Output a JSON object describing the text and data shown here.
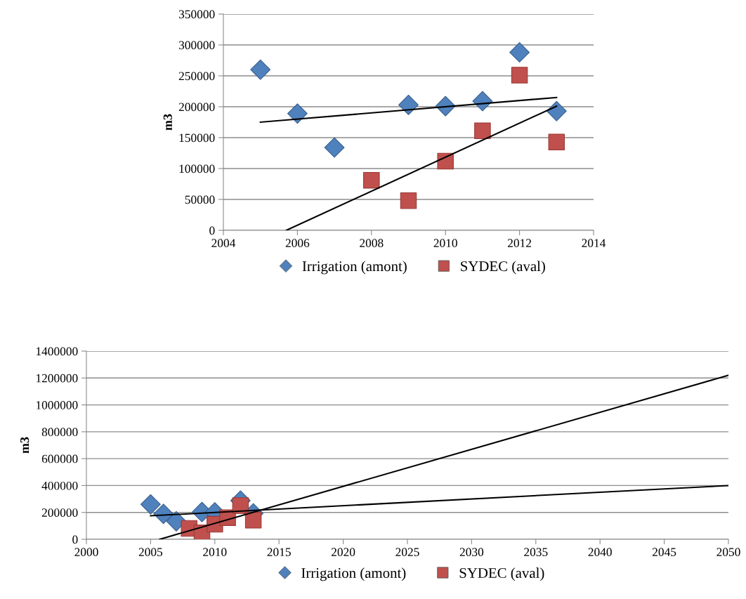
{
  "chart_data": [
    {
      "type": "scatter",
      "ylabel": "m3",
      "xlim": [
        2004,
        2014
      ],
      "xticks": [
        2004,
        2006,
        2008,
        2010,
        2012,
        2014
      ],
      "ylim": [
        0,
        350000
      ],
      "yticks": [
        0,
        50000,
        100000,
        150000,
        200000,
        250000,
        300000,
        350000
      ],
      "grid": "y",
      "legend": "bottom",
      "series": [
        {
          "name": "Irrigation (amont)",
          "color": "#4f81bd",
          "marker": "diamond",
          "x": [
            2005,
            2006,
            2007,
            2009,
            2010,
            2011,
            2012,
            2013
          ],
          "values": [
            260000,
            189000,
            134000,
            203000,
            201000,
            209000,
            288000,
            193000
          ]
        },
        {
          "name": "SYDEC (aval)",
          "color": "#c0504d",
          "marker": "square",
          "x": [
            2008,
            2009,
            2010,
            2011,
            2012,
            2013
          ],
          "values": [
            81000,
            48000,
            112000,
            161000,
            251000,
            143000
          ]
        },
        {
          "type": "line",
          "color": "#000000",
          "marker": "none",
          "x": [
            2005,
            2013
          ],
          "values": [
            175000,
            215000
          ]
        },
        {
          "type": "line",
          "color": "#000000",
          "marker": "none",
          "x": [
            2005.7,
            2013
          ],
          "values": [
            0,
            201000
          ]
        }
      ]
    },
    {
      "type": "scatter",
      "ylabel": "m3",
      "xlim": [
        2000,
        2050
      ],
      "xticks": [
        2000,
        2005,
        2010,
        2015,
        2020,
        2025,
        2030,
        2035,
        2040,
        2045,
        2050
      ],
      "ylim": [
        0,
        1400000
      ],
      "yticks": [
        0,
        200000,
        400000,
        600000,
        800000,
        1000000,
        1200000,
        1400000
      ],
      "grid": "y",
      "legend": "bottom",
      "series": [
        {
          "name": "Irrigation (amont)",
          "color": "#4f81bd",
          "marker": "diamond",
          "x": [
            2005,
            2006,
            2007,
            2009,
            2010,
            2011,
            2012,
            2013
          ],
          "values": [
            260000,
            189000,
            134000,
            203000,
            201000,
            null,
            288000,
            193000
          ]
        },
        {
          "name": "SYDEC (aval)",
          "color": "#c0504d",
          "marker": "square",
          "x": [
            2008,
            2009,
            2010,
            2011,
            2012,
            2013
          ],
          "values": [
            81000,
            48000,
            112000,
            161000,
            251000,
            143000
          ]
        },
        {
          "type": "line",
          "color": "#000000",
          "marker": "none",
          "x": [
            2005,
            2050
          ],
          "values": [
            175000,
            400000
          ]
        },
        {
          "type": "line",
          "color": "#000000",
          "marker": "none",
          "x": [
            2005.7,
            2050
          ],
          "values": [
            0,
            1220000
          ]
        }
      ]
    }
  ]
}
